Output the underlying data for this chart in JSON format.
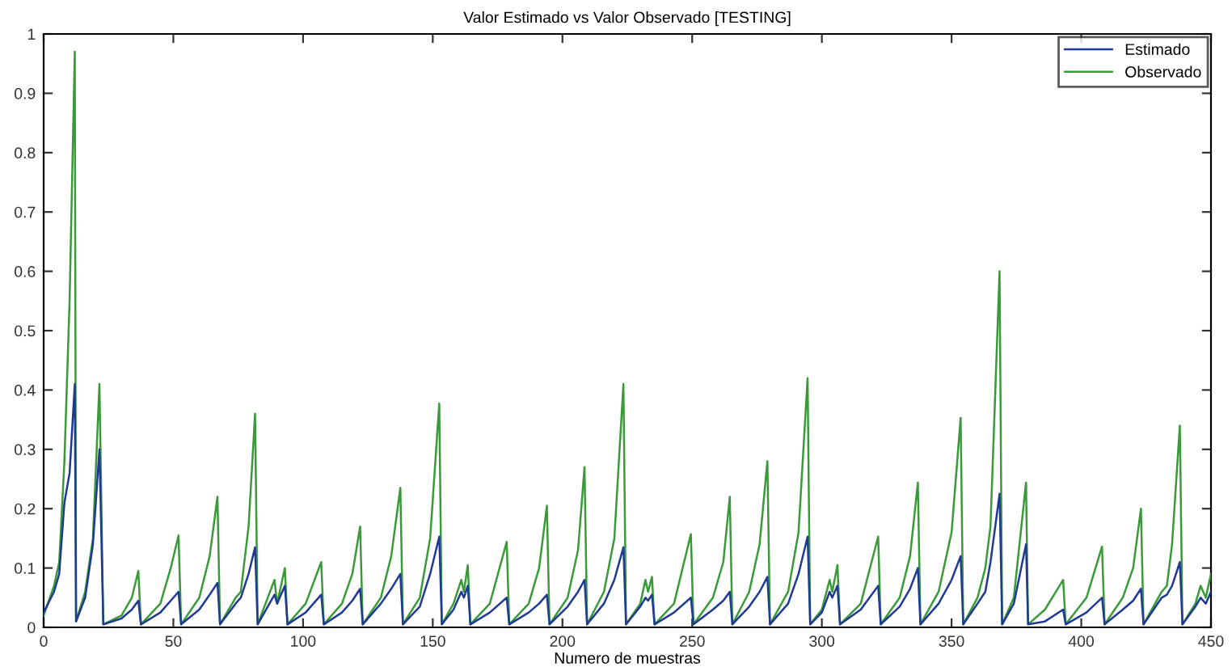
{
  "chart_data": {
    "type": "line",
    "title": "Valor Estimado vs Valor Observado [TESTING]",
    "xlabel": "Numero de muestras",
    "x": [
      0,
      4,
      6,
      8,
      10,
      12,
      12.5,
      16,
      19,
      21.5,
      23,
      30,
      34,
      36.5,
      37.5,
      45,
      49,
      52,
      53,
      60,
      64,
      67,
      68,
      74,
      76,
      79,
      81.5,
      82.5,
      89,
      90,
      93,
      94,
      101,
      107,
      108,
      115,
      119,
      122,
      123,
      130,
      134,
      137.5,
      138.5,
      145,
      149,
      152.5,
      153.5,
      158,
      161,
      162,
      163.5,
      164.5,
      172,
      178.5,
      179.5,
      187,
      191,
      194,
      195,
      202,
      206,
      208.5,
      209.5,
      216,
      220,
      223.5,
      224.5,
      230,
      232,
      233,
      234.5,
      235.5,
      243,
      249.5,
      250.5,
      258,
      262,
      264.5,
      265.5,
      272,
      276,
      279,
      280,
      287,
      291,
      294.5,
      295.5,
      300,
      303,
      304,
      306,
      307,
      315,
      321.7,
      322.7,
      330,
      334,
      337,
      338,
      345,
      350,
      353.5,
      354.5,
      360,
      363,
      365,
      368.5,
      369.5,
      374,
      378.7,
      379.5,
      386,
      393,
      394,
      402,
      408,
      409,
      416,
      420,
      423,
      424,
      431,
      433,
      435,
      438,
      439,
      444,
      446,
      448,
      450
    ],
    "series": [
      {
        "name": "Estimado",
        "color": "#1f3a93",
        "values": [
          0.025,
          0.06,
          0.09,
          0.21,
          0.26,
          0.41,
          0.01,
          0.05,
          0.14,
          0.3,
          0.005,
          0.015,
          0.03,
          0.045,
          0.005,
          0.025,
          0.045,
          0.06,
          0.005,
          0.03,
          0.055,
          0.075,
          0.005,
          0.04,
          0.05,
          0.09,
          0.135,
          0.005,
          0.055,
          0.04,
          0.07,
          0.005,
          0.025,
          0.055,
          0.005,
          0.025,
          0.045,
          0.065,
          0.005,
          0.04,
          0.065,
          0.09,
          0.005,
          0.035,
          0.09,
          0.153,
          0.005,
          0.03,
          0.06,
          0.05,
          0.07,
          0.005,
          0.025,
          0.05,
          0.005,
          0.025,
          0.04,
          0.055,
          0.005,
          0.035,
          0.06,
          0.08,
          0.005,
          0.04,
          0.08,
          0.135,
          0.005,
          0.035,
          0.05,
          0.045,
          0.055,
          0.005,
          0.025,
          0.05,
          0.005,
          0.03,
          0.045,
          0.06,
          0.005,
          0.035,
          0.06,
          0.085,
          0.005,
          0.04,
          0.09,
          0.153,
          0.005,
          0.025,
          0.06,
          0.05,
          0.07,
          0.005,
          0.03,
          0.07,
          0.005,
          0.035,
          0.065,
          0.1,
          0.005,
          0.04,
          0.08,
          0.12,
          0.005,
          0.04,
          0.06,
          0.11,
          0.225,
          0.005,
          0.04,
          0.14,
          0.005,
          0.01,
          0.03,
          0.005,
          0.025,
          0.05,
          0.005,
          0.03,
          0.045,
          0.065,
          0.005,
          0.05,
          0.055,
          0.07,
          0.11,
          0.005,
          0.035,
          0.05,
          0.04,
          0.06
        ]
      },
      {
        "name": "Observado",
        "color": "#3a9a3a",
        "values": [
          0.02,
          0.07,
          0.11,
          0.28,
          0.55,
          0.97,
          0.01,
          0.06,
          0.15,
          0.41,
          0.005,
          0.02,
          0.05,
          0.095,
          0.005,
          0.04,
          0.1,
          0.155,
          0.005,
          0.05,
          0.12,
          0.22,
          0.005,
          0.05,
          0.06,
          0.17,
          0.36,
          0.005,
          0.08,
          0.04,
          0.1,
          0.005,
          0.04,
          0.11,
          0.005,
          0.04,
          0.09,
          0.17,
          0.005,
          0.05,
          0.12,
          0.235,
          0.005,
          0.05,
          0.15,
          0.377,
          0.005,
          0.04,
          0.08,
          0.06,
          0.105,
          0.005,
          0.04,
          0.144,
          0.005,
          0.04,
          0.1,
          0.205,
          0.005,
          0.05,
          0.13,
          0.27,
          0.005,
          0.06,
          0.15,
          0.41,
          0.005,
          0.04,
          0.08,
          0.06,
          0.085,
          0.005,
          0.04,
          0.157,
          0.005,
          0.05,
          0.11,
          0.22,
          0.005,
          0.06,
          0.14,
          0.28,
          0.005,
          0.06,
          0.16,
          0.42,
          0.005,
          0.03,
          0.08,
          0.06,
          0.105,
          0.005,
          0.04,
          0.153,
          0.005,
          0.05,
          0.12,
          0.244,
          0.005,
          0.06,
          0.16,
          0.353,
          0.005,
          0.05,
          0.1,
          0.17,
          0.6,
          0.005,
          0.05,
          0.244,
          0.005,
          0.03,
          0.08,
          0.005,
          0.05,
          0.136,
          0.005,
          0.05,
          0.1,
          0.2,
          0.005,
          0.06,
          0.07,
          0.14,
          0.34,
          0.005,
          0.04,
          0.07,
          0.05,
          0.09
        ]
      }
    ],
    "xlim": [
      0,
      450
    ],
    "xticks": [
      0,
      50,
      100,
      150,
      200,
      250,
      300,
      350,
      400,
      450
    ],
    "ylim": [
      0,
      1
    ],
    "yticks": [
      0,
      0.1,
      0.2,
      0.3,
      0.4,
      0.5,
      0.6,
      0.7,
      0.8,
      0.9,
      1
    ],
    "legend": "top right",
    "grid": false,
    "marker": "none",
    "line_style": "solid"
  }
}
